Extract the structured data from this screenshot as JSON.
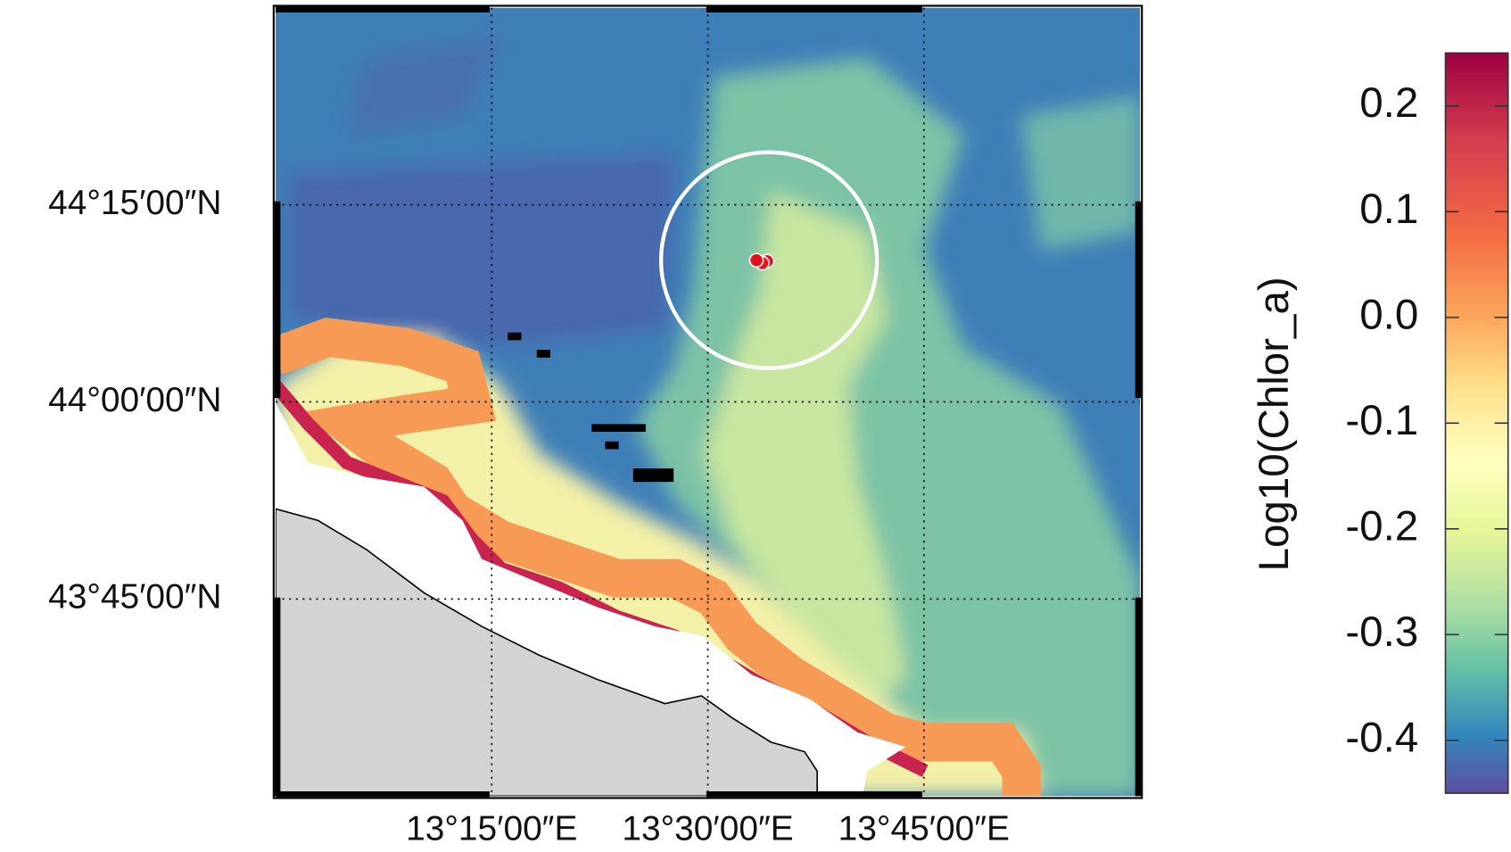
{
  "chart_data": {
    "type": "map",
    "xlim": [
      13.0,
      14.0
    ],
    "ylim": [
      43.5,
      44.5
    ],
    "xticks": [
      {
        "value": 13.25,
        "label": "13°15′00″E"
      },
      {
        "value": 13.5,
        "label": "13°30′00″E"
      },
      {
        "value": 13.75,
        "label": "13°45′00″E"
      }
    ],
    "yticks": [
      {
        "value": 44.25,
        "label": "44°15′00″N"
      },
      {
        "value": 44.0,
        "label": "44°00′00″N"
      },
      {
        "value": 43.75,
        "label": "43°45′00″N"
      }
    ],
    "grid": true,
    "colorbar": {
      "label": "Log10(Chlor_a)",
      "lim": [
        -0.45,
        0.25
      ],
      "ticks": [
        0.2,
        0.1,
        {
          "value": 0,
          "label": "0.0"
        },
        -0.1,
        -0.2,
        -0.3,
        -0.4
      ]
    }
  }
}
